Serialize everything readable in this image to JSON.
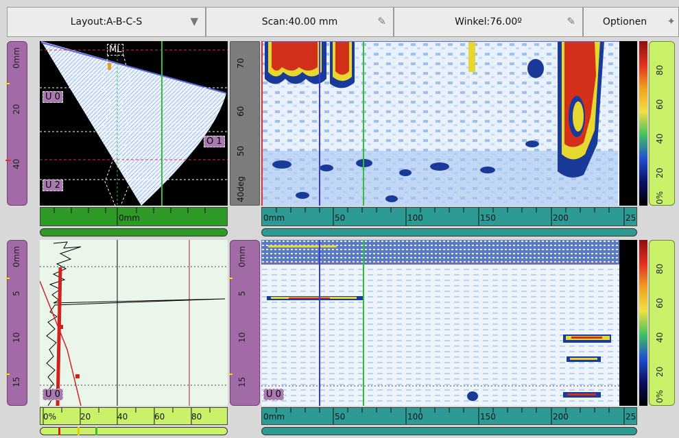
{
  "toolbar": {
    "layout": "Layout:A-B-C-S",
    "scan": "Scan:40.00 mm",
    "angle": "Winkel:76.00º",
    "options": "Optionen"
  },
  "s_scan": {
    "y_ticks": [
      "0mm",
      "20",
      "40"
    ],
    "x_label": "0mm",
    "ml_label": "ML",
    "tags": [
      "U 0",
      "U 2",
      "O 1"
    ]
  },
  "b_scan": {
    "y_ticks": [
      "70",
      "60",
      "50",
      "40deg"
    ],
    "x_ticks": [
      "0mm",
      "50",
      "100",
      "150",
      "200",
      "25"
    ],
    "colorbar_ticks": [
      "80",
      "60",
      "40",
      "20",
      "0%"
    ]
  },
  "a_scan": {
    "y_ticks": [
      "0mm",
      "5",
      "10",
      "15"
    ],
    "x_ticks": [
      "0%",
      "20",
      "40",
      "60",
      "80"
    ],
    "tag": "U 0"
  },
  "c_scan": {
    "y_ticks": [
      "0mm",
      "5",
      "10",
      "15"
    ],
    "x_ticks": [
      "0mm",
      "50",
      "100",
      "150",
      "200",
      "25"
    ],
    "colorbar_ticks": [
      "80",
      "60",
      "40",
      "20",
      "0%"
    ],
    "tag": "U 0"
  },
  "colors": {
    "ruler_purple": "#a26aa6",
    "ruler_green": "#c9f26a",
    "ruler_teal": "#2e9a94",
    "ruler_dark_green": "#2c9a24",
    "cursor_green": "#2fc22f",
    "cursor_blue": "#3b3bdc",
    "gate_red": "#e53030"
  }
}
